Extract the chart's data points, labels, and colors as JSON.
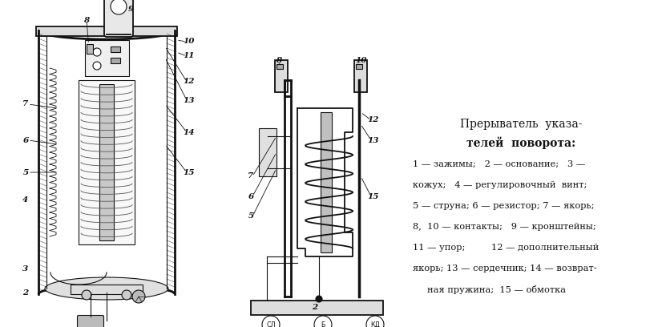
{
  "bg_color": "#ffffff",
  "text_color": "#000000",
  "title_line1": "Прерыватель  указа-",
  "title_line2": "телей  поворота:",
  "legend_lines": [
    "1 — зажимы;   2 — основание;   3 —",
    "кожух;   4 — регулировочный  винт;",
    "5 — струна; 6 — резистор; 7 — якорь;",
    "8,  10 — контакты;   9 — кронштейны;",
    "11 — упор;         12 — дополнительный",
    "якорь; 13 — сердечник; 14 — возврат-",
    "     ная пружина;  15 — обмотка"
  ],
  "figsize": [
    8.31,
    4.08
  ],
  "dpi": 100
}
